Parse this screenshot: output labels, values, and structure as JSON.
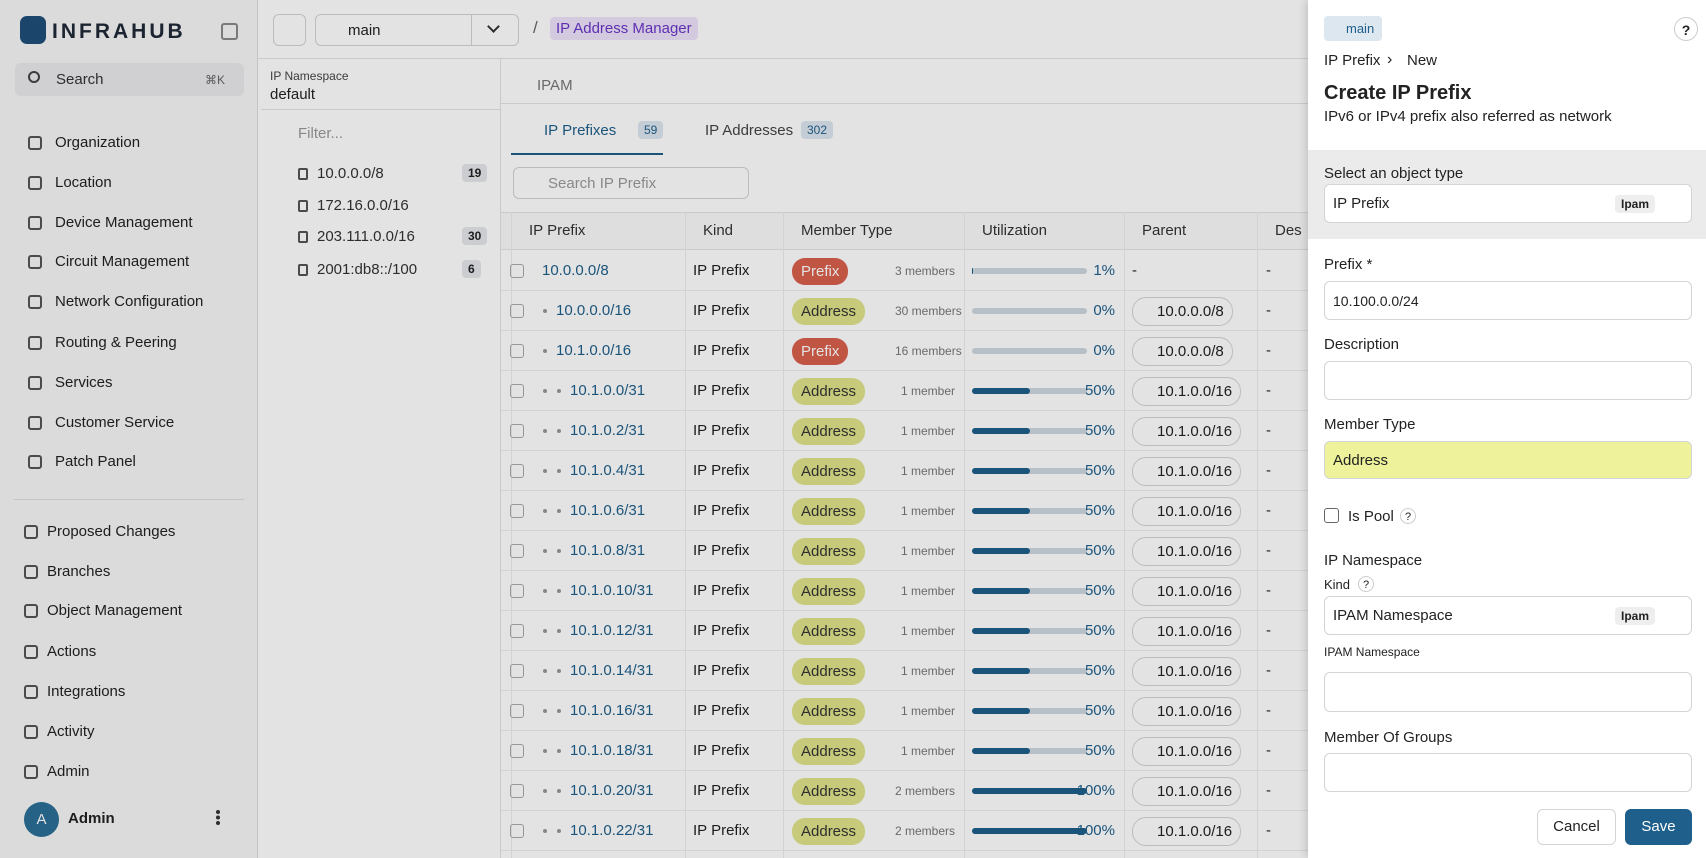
{
  "sidebar": {
    "brand": "INFRAHUB",
    "search": "Search",
    "shortcut": "⌘K",
    "nav": [
      "Organization",
      "Location",
      "Device Management",
      "Circuit Management",
      "Network Configuration",
      "Routing & Peering",
      "Services",
      "Customer Service",
      "Patch Panel"
    ],
    "nav_secondary": [
      "Proposed Changes",
      "Branches",
      "Object Management",
      "Actions",
      "Integrations",
      "Activity",
      "Admin"
    ],
    "user": {
      "initial": "A",
      "name": "Admin"
    }
  },
  "topbar": {
    "branch": "main",
    "separator": "/",
    "breadcrumb": "IP Address Manager"
  },
  "namespace": {
    "label": "IP Namespace",
    "value": "default",
    "filter": "Filter...",
    "tree": [
      {
        "label": "10.0.0.0/8",
        "count": 19
      },
      {
        "label": "172.16.0.0/16"
      },
      {
        "label": "203.111.0.0/16",
        "count": 30
      },
      {
        "label": "2001:db8::/100",
        "count": 6
      }
    ]
  },
  "content": {
    "header": "IPAM",
    "tabs": [
      {
        "label": "IP Prefixes",
        "count": 59
      },
      {
        "label": "IP Addresses",
        "count": 302
      }
    ],
    "search": "Search IP Prefix",
    "table": {
      "columns": [
        "IP Prefix",
        "Kind",
        "Member Type",
        "Utilization",
        "Parent",
        "Des"
      ],
      "prefix_badge_color": "#d9604c",
      "address_badge_color": "#dfe38a",
      "bar_color": "#1f5f8b",
      "rows": [
        {
          "prefix": "10.0.0.0/8",
          "kind": "IP Prefix",
          "member_type": "Prefix",
          "members": "3 members",
          "utilization": {
            "value": 1,
            "label": "1%"
          },
          "parent": "-",
          "description": "-"
        },
        {
          "prefix": "10.0.0.0/16",
          "kind": "IP Prefix",
          "member_type": "Address",
          "members": "30 members",
          "utilization": {
            "value": 0,
            "label": "0%"
          },
          "parent": "10.0.0.0/8",
          "description": "-"
        },
        {
          "prefix": "10.1.0.0/16",
          "kind": "IP Prefix",
          "member_type": "Prefix",
          "members": "16 members",
          "utilization": {
            "value": 0,
            "label": "0%"
          },
          "parent": "10.0.0.0/8",
          "description": "-"
        },
        {
          "prefix": "10.1.0.0/31",
          "kind": "IP Prefix",
          "member_type": "Address",
          "members": "1 member",
          "utilization": {
            "value": 50,
            "label": "50%"
          },
          "parent": "10.1.0.0/16",
          "description": "-"
        },
        {
          "prefix": "10.1.0.2/31",
          "kind": "IP Prefix",
          "member_type": "Address",
          "members": "1 member",
          "utilization": {
            "value": 50,
            "label": "50%"
          },
          "parent": "10.1.0.0/16",
          "description": "-"
        },
        {
          "prefix": "10.1.0.4/31",
          "kind": "IP Prefix",
          "member_type": "Address",
          "members": "1 member",
          "utilization": {
            "value": 50,
            "label": "50%"
          },
          "parent": "10.1.0.0/16",
          "description": "-"
        },
        {
          "prefix": "10.1.0.6/31",
          "kind": "IP Prefix",
          "member_type": "Address",
          "members": "1 member",
          "utilization": {
            "value": 50,
            "label": "50%"
          },
          "parent": "10.1.0.0/16",
          "description": "-"
        },
        {
          "prefix": "10.1.0.8/31",
          "kind": "IP Prefix",
          "member_type": "Address",
          "members": "1 member",
          "utilization": {
            "value": 50,
            "label": "50%"
          },
          "parent": "10.1.0.0/16",
          "description": "-"
        },
        {
          "prefix": "10.1.0.10/31",
          "kind": "IP Prefix",
          "member_type": "Address",
          "members": "1 member",
          "utilization": {
            "value": 50,
            "label": "50%"
          },
          "parent": "10.1.0.0/16",
          "description": "-"
        },
        {
          "prefix": "10.1.0.12/31",
          "kind": "IP Prefix",
          "member_type": "Address",
          "members": "1 member",
          "utilization": {
            "value": 50,
            "label": "50%"
          },
          "parent": "10.1.0.0/16",
          "description": "-"
        },
        {
          "prefix": "10.1.0.14/31",
          "kind": "IP Prefix",
          "member_type": "Address",
          "members": "1 member",
          "utilization": {
            "value": 50,
            "label": "50%"
          },
          "parent": "10.1.0.0/16",
          "description": "-"
        },
        {
          "prefix": "10.1.0.16/31",
          "kind": "IP Prefix",
          "member_type": "Address",
          "members": "1 member",
          "utilization": {
            "value": 50,
            "label": "50%"
          },
          "parent": "10.1.0.0/16",
          "description": "-"
        },
        {
          "prefix": "10.1.0.18/31",
          "kind": "IP Prefix",
          "member_type": "Address",
          "members": "1 member",
          "utilization": {
            "value": 50,
            "label": "50%"
          },
          "parent": "10.1.0.0/16",
          "description": "-"
        },
        {
          "prefix": "10.1.0.20/31",
          "kind": "IP Prefix",
          "member_type": "Address",
          "members": "2 members",
          "utilization": {
            "value": 100,
            "label": "100%"
          },
          "parent": "10.1.0.0/16",
          "description": "-"
        },
        {
          "prefix": "10.1.0.22/31",
          "kind": "IP Prefix",
          "member_type": "Address",
          "members": "2 members",
          "utilization": {
            "value": 100,
            "label": "100%"
          },
          "parent": "10.1.0.0/16",
          "description": "-"
        }
      ]
    }
  },
  "panel": {
    "branch": "main",
    "help": "?",
    "breadcrumb": [
      "IP Prefix",
      "New"
    ],
    "breadcrumb_separator": "›",
    "title": "Create IP Prefix",
    "subtitle": "IPv6 or IPv4 prefix also referred as network",
    "object_type": {
      "label": "Select an object type",
      "value": "IP Prefix",
      "badge": "Ipam"
    },
    "prefix": {
      "label": "Prefix *",
      "value": "10.100.0.0/24"
    },
    "description": {
      "label": "Description"
    },
    "member_type": {
      "label": "Member Type",
      "value": "Address"
    },
    "is_pool": {
      "label": "Is Pool",
      "help": "?"
    },
    "ip_namespace": {
      "title": "IP Namespace",
      "kind_label": "Kind",
      "help": "?",
      "kind_value": "IPAM Namespace",
      "badge": "Ipam",
      "namespace_label": "IPAM Namespace"
    },
    "member_of_groups": {
      "label": "Member Of Groups"
    },
    "buttons": {
      "cancel": "Cancel",
      "save": "Save"
    }
  }
}
